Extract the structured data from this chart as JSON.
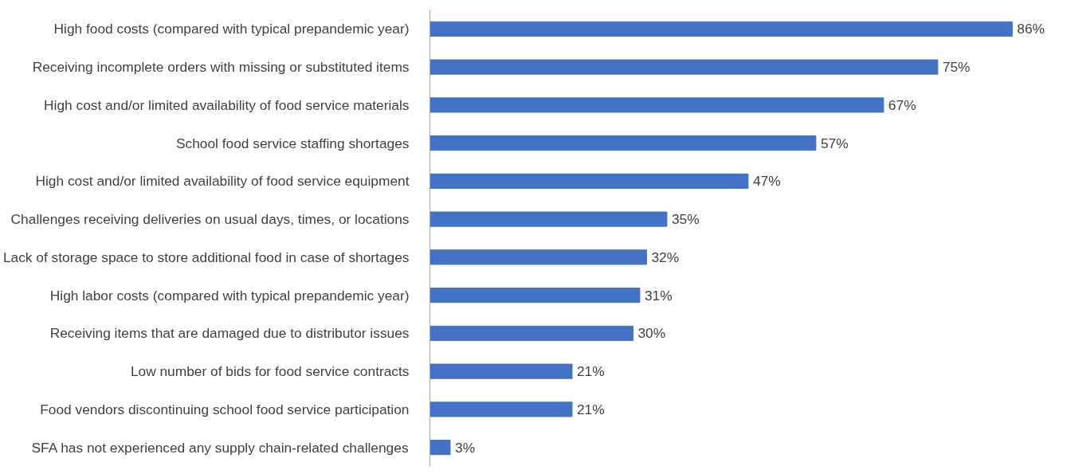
{
  "chart_data": {
    "type": "bar",
    "orientation": "horizontal",
    "categories": [
      "High food costs (compared with typical prepandemic year)",
      "Receiving incomplete orders with missing or substituted items",
      "High cost and/or limited availability of food service materials",
      "School food service staffing shortages",
      "High cost and/or limited availability of food service equipment",
      "Challenges receiving deliveries on usual days, times, or locations",
      "Lack of storage space to store additional food in case of shortages",
      "High labor costs (compared with typical prepandemic year)",
      "Receiving items that are damaged due to distributor issues",
      "Low number of bids for food service contracts",
      "Food vendors discontinuing school food service participation",
      "SFA has not experienced any supply chain-related challenges"
    ],
    "values": [
      86,
      75,
      67,
      57,
      47,
      35,
      32,
      31,
      30,
      21,
      21,
      3
    ],
    "value_labels": [
      "86%",
      "75%",
      "67%",
      "57%",
      "47%",
      "35%",
      "32%",
      "31%",
      "30%",
      "21%",
      "21%",
      "3%"
    ],
    "color": "#4472c4",
    "tick_labels": "y",
    "grid": false
  }
}
